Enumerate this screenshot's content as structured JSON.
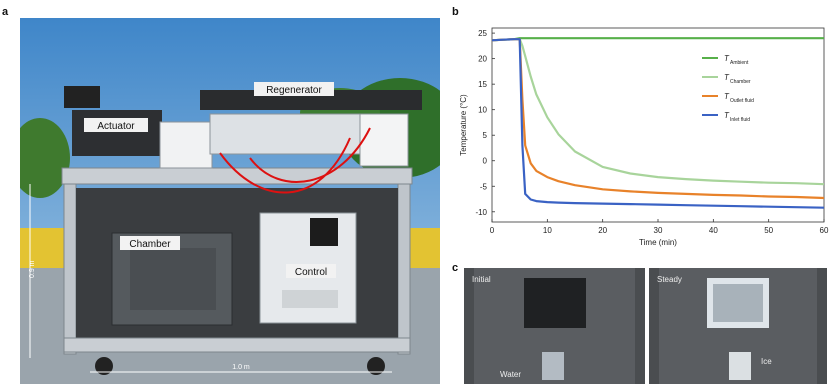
{
  "panels": {
    "a": "a",
    "b": "b",
    "c": "c"
  },
  "photo_a": {
    "labels": {
      "regenerator": "Regenerator",
      "actuator": "Actuator",
      "chamber": "Chamber",
      "control": "Control",
      "height": "0.9 m",
      "width": "1.0 m"
    }
  },
  "photo_c": {
    "left_label": "Initial",
    "left_sub": "Water",
    "right_label": "Steady",
    "right_sub": "Ice"
  },
  "chart_data": {
    "type": "line",
    "xlabel": "Time (min)",
    "ylabel": "Temperature (°C)",
    "xlim": [
      0,
      60
    ],
    "ylim": [
      -12,
      26
    ],
    "xticks": [
      0,
      10,
      20,
      30,
      40,
      50,
      60
    ],
    "yticks": [
      25,
      20,
      15,
      10,
      5,
      0,
      -5,
      -10
    ],
    "grid": false,
    "legend": "top-right",
    "x": [
      0,
      2,
      4,
      5,
      5.5,
      6,
      7,
      8,
      10,
      12,
      15,
      20,
      25,
      30,
      35,
      40,
      45,
      50,
      55,
      60
    ],
    "series": [
      {
        "name": "T",
        "sub": "Ambient",
        "color": "#57b04a",
        "values": [
          23.6,
          23.7,
          23.8,
          24.0,
          24.0,
          24.0,
          24.0,
          24.0,
          24.0,
          24.0,
          24.0,
          24.0,
          24.0,
          24.0,
          24.0,
          24.0,
          24.0,
          24.0,
          24.0,
          24.0
        ]
      },
      {
        "name": "T",
        "sub": "Chamber",
        "color": "#a8d49b",
        "values": [
          23.6,
          23.7,
          23.8,
          23.8,
          22.5,
          20.5,
          16.5,
          13.0,
          8.5,
          5.2,
          1.8,
          -1.2,
          -2.5,
          -3.2,
          -3.6,
          -3.9,
          -4.1,
          -4.3,
          -4.4,
          -4.6
        ]
      },
      {
        "name": "T",
        "sub": "Outlet fluid",
        "color": "#e8822a",
        "values": [
          23.6,
          23.7,
          23.8,
          23.8,
          12.0,
          3.0,
          -0.5,
          -2.0,
          -3.2,
          -4.0,
          -4.8,
          -5.6,
          -6.0,
          -6.3,
          -6.5,
          -6.7,
          -6.8,
          -7.0,
          -7.1,
          -7.3
        ]
      },
      {
        "name": "T",
        "sub": "Inlet fluid",
        "color": "#3a62c4",
        "values": [
          23.6,
          23.7,
          23.8,
          23.8,
          3.0,
          -6.5,
          -7.6,
          -7.9,
          -8.1,
          -8.2,
          -8.3,
          -8.4,
          -8.5,
          -8.6,
          -8.7,
          -8.8,
          -8.9,
          -9.0,
          -9.1,
          -9.2
        ]
      }
    ]
  }
}
